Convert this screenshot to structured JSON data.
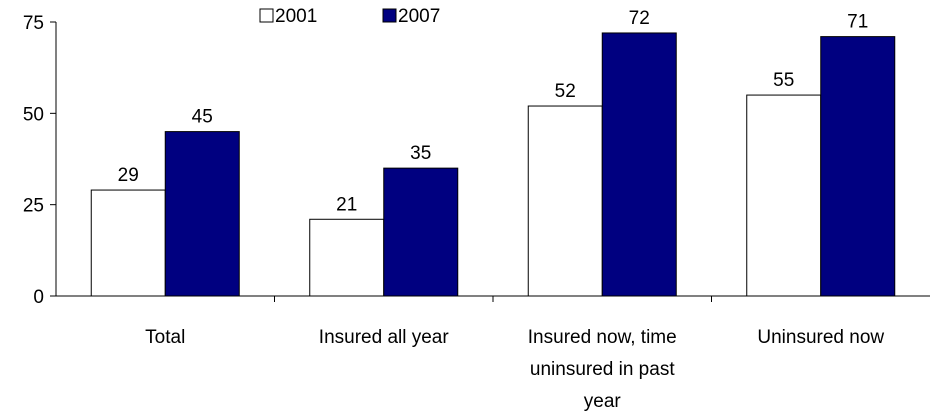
{
  "chart_data": {
    "type": "bar",
    "title": "",
    "xlabel": "",
    "ylabel": "",
    "ylim": [
      0,
      75
    ],
    "yticks": [
      "0",
      "25",
      "50",
      "75"
    ],
    "grid": false,
    "legend_position": "top",
    "categories": [
      [
        "Total"
      ],
      [
        "Insured all year"
      ],
      [
        "Insured now, time",
        "uninsured in past",
        "year"
      ],
      [
        "Uninsured now"
      ]
    ],
    "series": [
      {
        "name": "2001",
        "color": "#ffffff",
        "values": [
          29,
          21,
          52,
          55
        ]
      },
      {
        "name": "2007",
        "color": "#000080",
        "values": [
          45,
          35,
          72,
          71
        ]
      }
    ],
    "data_labels": [
      [
        "29",
        "21",
        "52",
        "55"
      ],
      [
        "45",
        "35",
        "72",
        "71"
      ]
    ]
  }
}
